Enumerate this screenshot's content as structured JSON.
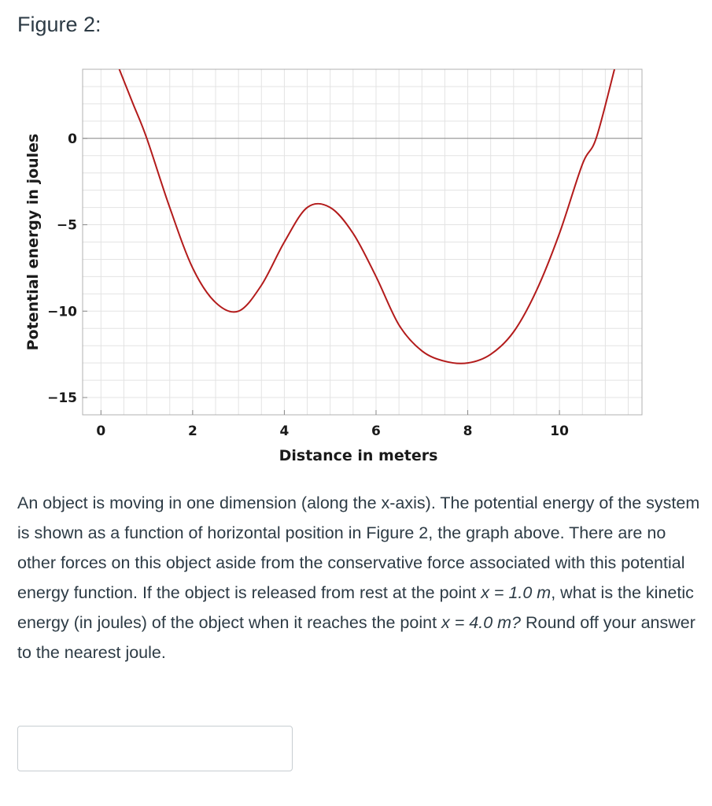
{
  "figure_title": "Figure 2:",
  "chart_data": {
    "type": "line",
    "xlabel": "Distance in meters",
    "ylabel": "Potential energy in joules",
    "xlim": [
      -0.4,
      11.8
    ],
    "ylim": [
      -16,
      4
    ],
    "x_ticks": [
      0,
      2,
      4,
      6,
      8,
      10
    ],
    "y_ticks": [
      0,
      -5,
      -10,
      -15
    ],
    "grid": true,
    "line_color": "#b31b1b",
    "series": [
      {
        "x": [
          0.4,
          0.7,
          1.0,
          1.5,
          2.0,
          2.5,
          3.0,
          3.5,
          4.0,
          4.5,
          5.0,
          5.5,
          6.0,
          6.5,
          7.0,
          7.5,
          8.0,
          8.5,
          9.0,
          9.5,
          10.0,
          10.5,
          10.8,
          11.2
        ],
        "y": [
          4.0,
          2.0,
          0.0,
          -4.0,
          -7.5,
          -9.5,
          -10.0,
          -8.5,
          -6.0,
          -4.0,
          -4.0,
          -5.5,
          -8.0,
          -10.8,
          -12.3,
          -12.9,
          -13.0,
          -12.5,
          -11.2,
          -8.8,
          -5.5,
          -1.5,
          0.0,
          4.0
        ]
      }
    ]
  },
  "question": {
    "part1": "An object is moving in one dimension (along the x-axis). The potential energy of the system is shown as a function of horizontal position in Figure 2, the graph above.  There are no other forces on this object aside from the conservative force associated with this potential energy function.  If the object is released from rest at the point ",
    "math1": "x = 1.0 m",
    "part2": ", what is the kinetic energy (in joules) of the object when it reaches the point ",
    "math2": "x = 4.0 m?",
    "part3": "  Round off your answer to the nearest joule."
  },
  "answer": {
    "value": "",
    "placeholder": ""
  }
}
